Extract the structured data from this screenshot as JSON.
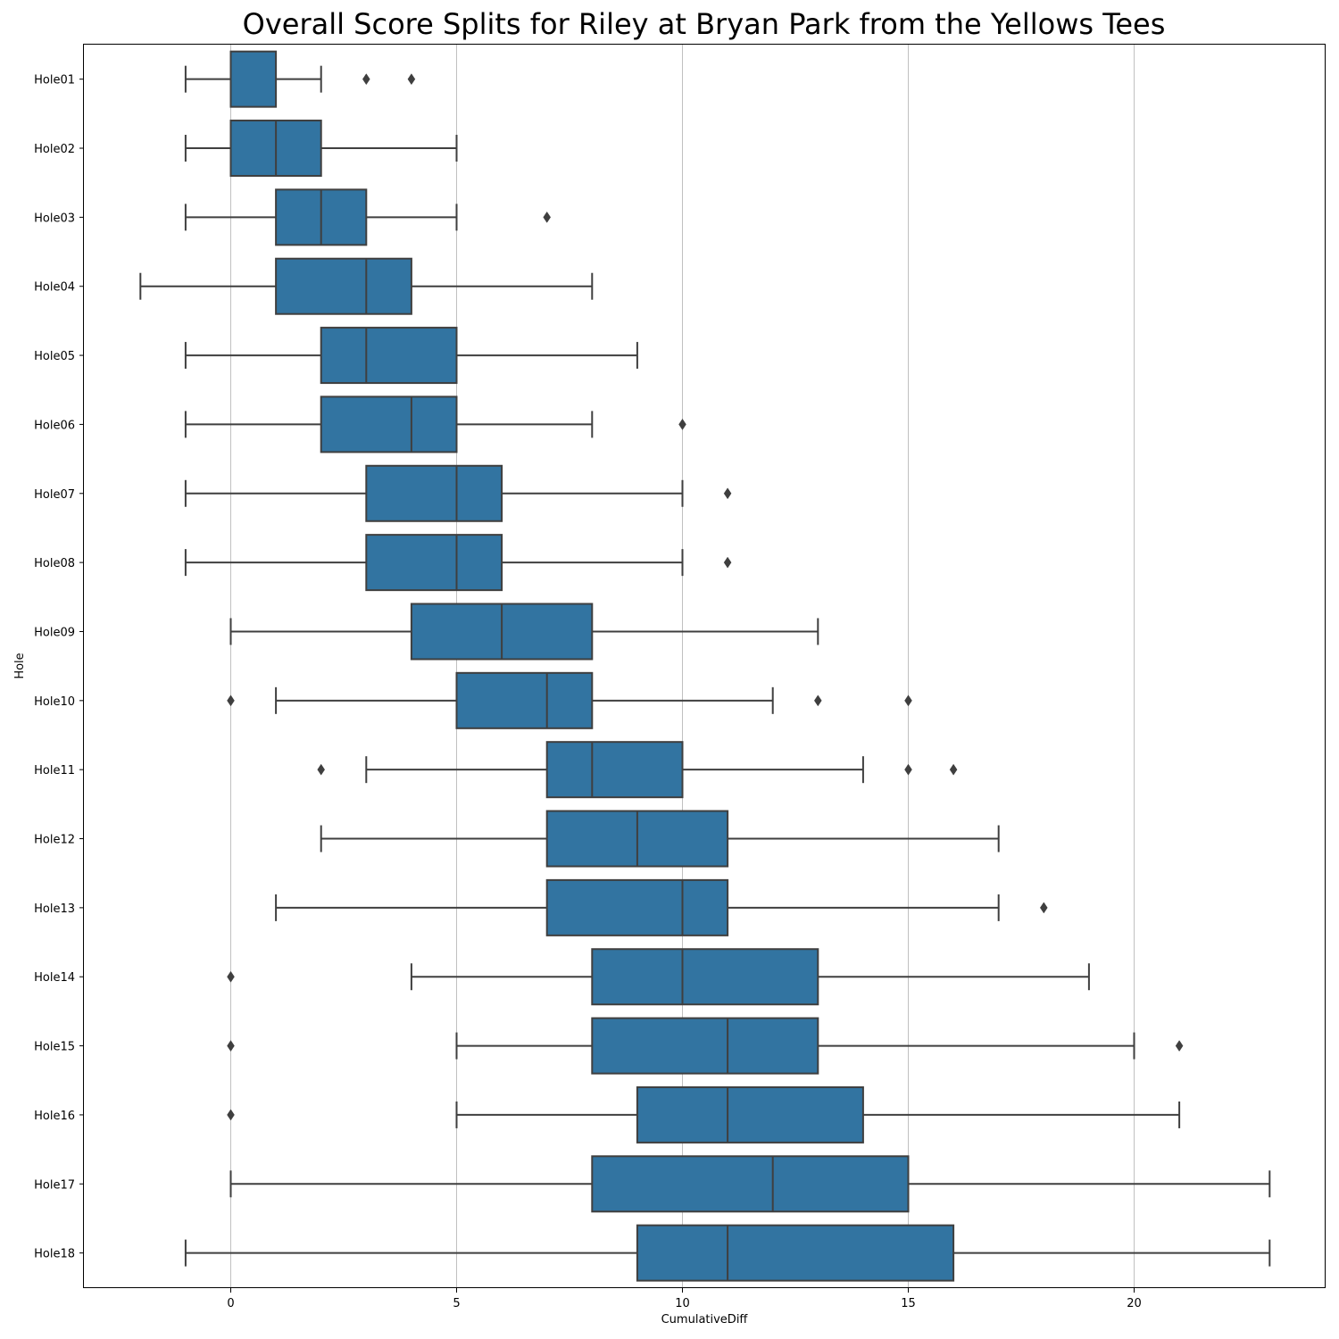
{
  "chart_data": {
    "type": "boxplot",
    "orientation": "horizontal",
    "title": "Overall Score Splits for Riley at Bryan Park from the Yellows Tees",
    "xlabel": "CumulativeDiff",
    "ylabel": "Hole",
    "xlim": [
      -3.25,
      24.25
    ],
    "xticks": [
      0,
      5,
      10,
      15,
      20
    ],
    "grid": "vertical",
    "box_color": "#3274a1",
    "line_color": "#3f3f3f",
    "categories": [
      "Hole01",
      "Hole02",
      "Hole03",
      "Hole04",
      "Hole05",
      "Hole06",
      "Hole07",
      "Hole08",
      "Hole09",
      "Hole10",
      "Hole11",
      "Hole12",
      "Hole13",
      "Hole14",
      "Hole15",
      "Hole16",
      "Hole17",
      "Hole18"
    ],
    "boxes": [
      {
        "whislo": -1,
        "q1": 0,
        "med": 0,
        "q3": 1,
        "whishi": 2,
        "fliers": [
          3,
          4
        ]
      },
      {
        "whislo": -1,
        "q1": 0,
        "med": 1,
        "q3": 2,
        "whishi": 5,
        "fliers": []
      },
      {
        "whislo": -1,
        "q1": 1,
        "med": 2,
        "q3": 3,
        "whishi": 5,
        "fliers": [
          7
        ]
      },
      {
        "whislo": -2,
        "q1": 1,
        "med": 3,
        "q3": 4,
        "whishi": 8,
        "fliers": []
      },
      {
        "whislo": -1,
        "q1": 2,
        "med": 3,
        "q3": 5,
        "whishi": 9,
        "fliers": []
      },
      {
        "whislo": -1,
        "q1": 2,
        "med": 4,
        "q3": 5,
        "whishi": 8,
        "fliers": [
          10
        ]
      },
      {
        "whislo": -1,
        "q1": 3,
        "med": 5,
        "q3": 6,
        "whishi": 10,
        "fliers": [
          11
        ]
      },
      {
        "whislo": -1,
        "q1": 3,
        "med": 5,
        "q3": 6,
        "whishi": 10,
        "fliers": [
          11
        ]
      },
      {
        "whislo": 0,
        "q1": 4,
        "med": 6,
        "q3": 8,
        "whishi": 13,
        "fliers": []
      },
      {
        "whislo": 1,
        "q1": 5,
        "med": 7,
        "q3": 8,
        "whishi": 12,
        "fliers": [
          0,
          13,
          15
        ]
      },
      {
        "whislo": 3,
        "q1": 7,
        "med": 8,
        "q3": 10,
        "whishi": 14,
        "fliers": [
          2,
          15,
          16
        ]
      },
      {
        "whislo": 2,
        "q1": 7,
        "med": 9,
        "q3": 11,
        "whishi": 17,
        "fliers": []
      },
      {
        "whislo": 1,
        "q1": 7,
        "med": 10,
        "q3": 11,
        "whishi": 17,
        "fliers": [
          18
        ]
      },
      {
        "whislo": 4,
        "q1": 8,
        "med": 10,
        "q3": 13,
        "whishi": 19,
        "fliers": [
          0
        ]
      },
      {
        "whislo": 5,
        "q1": 8,
        "med": 11,
        "q3": 13,
        "whishi": 20,
        "fliers": [
          0,
          21
        ]
      },
      {
        "whislo": 5,
        "q1": 9,
        "med": 11,
        "q3": 14,
        "whishi": 21,
        "fliers": [
          0
        ]
      },
      {
        "whislo": 0,
        "q1": 8,
        "med": 12,
        "q3": 15,
        "whishi": 23,
        "fliers": []
      },
      {
        "whislo": -1,
        "q1": 9,
        "med": 11,
        "q3": 16,
        "whishi": 23,
        "fliers": []
      }
    ]
  }
}
